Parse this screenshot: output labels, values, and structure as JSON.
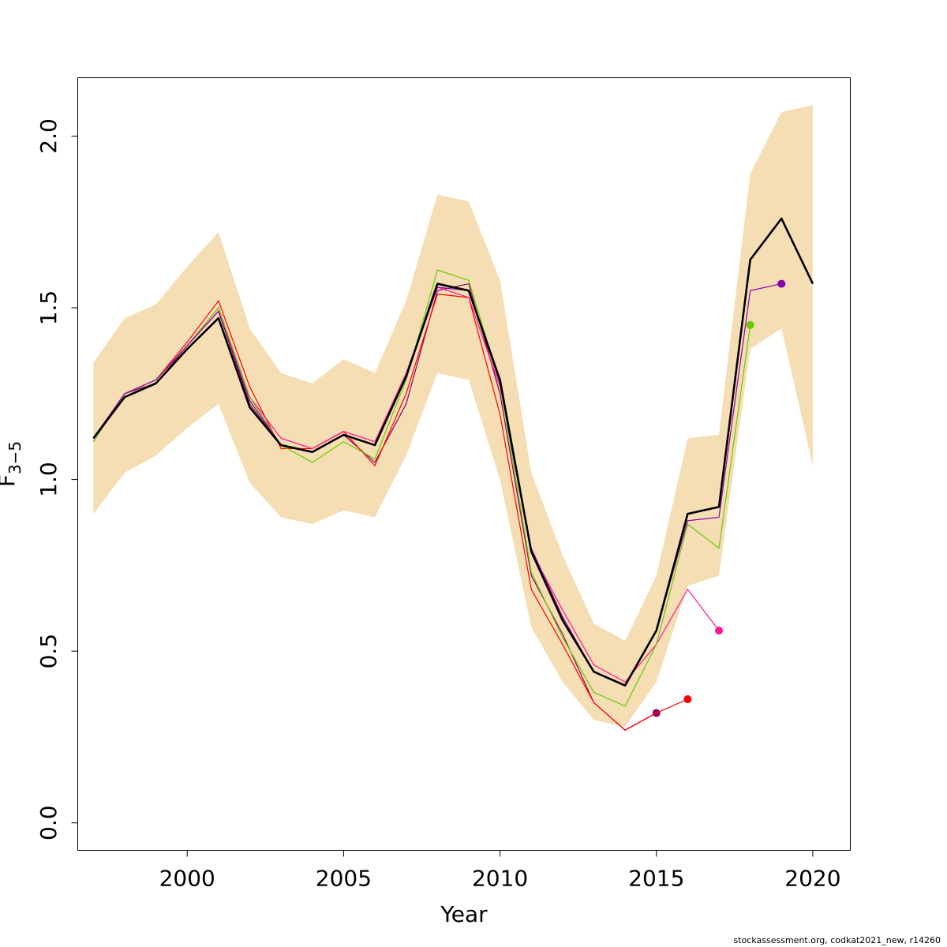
{
  "chart_data": {
    "type": "line",
    "xlabel": "Year",
    "ylabel": "F",
    "ylabel_sub": "3−5",
    "xlim": [
      1996.5,
      2021.2
    ],
    "ylim": [
      -0.08,
      2.17
    ],
    "xticks": [
      2000,
      2005,
      2010,
      2015,
      2020
    ],
    "yticks": [
      0.0,
      0.5,
      1.0,
      1.5,
      2.0
    ],
    "ytick_labels": [
      "0.0",
      "0.5",
      "1.0",
      "1.5",
      "2.0"
    ],
    "colors": {
      "band": "#f5deb3",
      "main": "#000000"
    },
    "confidence_band": {
      "x": [
        1997,
        1998,
        1999,
        2000,
        2001,
        2002,
        2003,
        2004,
        2005,
        2006,
        2007,
        2008,
        2009,
        2010,
        2011,
        2012,
        2013,
        2014,
        2015,
        2016,
        2017,
        2018,
        2019,
        2020
      ],
      "lower": [
        0.9,
        1.02,
        1.07,
        1.15,
        1.22,
        0.99,
        0.89,
        0.87,
        0.91,
        0.89,
        1.07,
        1.31,
        1.29,
        1.0,
        0.57,
        0.41,
        0.3,
        0.28,
        0.41,
        0.69,
        0.72,
        1.38,
        1.44,
        1.04
      ],
      "upper": [
        1.34,
        1.47,
        1.51,
        1.62,
        1.72,
        1.44,
        1.31,
        1.28,
        1.35,
        1.31,
        1.52,
        1.83,
        1.81,
        1.58,
        1.02,
        0.78,
        0.58,
        0.53,
        0.72,
        1.12,
        1.13,
        1.89,
        2.07,
        2.09
      ]
    },
    "main_series": {
      "x": [
        1997,
        1998,
        1999,
        2000,
        2001,
        2002,
        2003,
        2004,
        2005,
        2006,
        2007,
        2008,
        2009,
        2010,
        2011,
        2012,
        2013,
        2014,
        2015,
        2016,
        2017,
        2018,
        2019,
        2020
      ],
      "values": [
        1.12,
        1.24,
        1.28,
        1.38,
        1.47,
        1.21,
        1.1,
        1.08,
        1.13,
        1.1,
        1.3,
        1.57,
        1.55,
        1.29,
        0.79,
        0.59,
        0.44,
        0.4,
        0.56,
        0.9,
        0.92,
        1.64,
        1.76,
        1.57
      ]
    },
    "retro_series": [
      {
        "color": "#8b0066",
        "x": [
          1997,
          1998,
          1999,
          2000,
          2001,
          2002,
          2003,
          2004,
          2005,
          2006,
          2007,
          2008,
          2009,
          2010,
          2011,
          2012,
          2013,
          2014,
          2015
        ],
        "values": [
          1.11,
          1.25,
          1.28,
          1.39,
          1.49,
          1.22,
          1.1,
          1.08,
          1.13,
          1.05,
          1.22,
          1.55,
          1.57,
          1.25,
          0.72,
          0.55,
          0.35,
          0.27,
          0.32
        ]
      },
      {
        "color": "#ff0000",
        "x": [
          1997,
          1998,
          1999,
          2000,
          2001,
          2002,
          2003,
          2004,
          2005,
          2006,
          2007,
          2008,
          2009,
          2010,
          2011,
          2012,
          2013,
          2014,
          2015,
          2016
        ],
        "values": [
          1.12,
          1.25,
          1.29,
          1.4,
          1.52,
          1.27,
          1.09,
          1.09,
          1.14,
          1.04,
          1.25,
          1.54,
          1.53,
          1.19,
          0.68,
          0.52,
          0.35,
          0.27,
          0.32,
          0.36
        ]
      },
      {
        "color": "#ff1493",
        "x": [
          1997,
          1998,
          1999,
          2000,
          2001,
          2002,
          2003,
          2004,
          2005,
          2006,
          2007,
          2008,
          2009,
          2010,
          2011,
          2012,
          2013,
          2014,
          2015,
          2016,
          2017
        ],
        "values": [
          1.12,
          1.25,
          1.29,
          1.39,
          1.5,
          1.24,
          1.12,
          1.09,
          1.14,
          1.11,
          1.31,
          1.56,
          1.53,
          1.27,
          0.79,
          0.62,
          0.46,
          0.41,
          0.52,
          0.68,
          0.56
        ]
      },
      {
        "color": "#66cc00",
        "x": [
          1997,
          1998,
          1999,
          2000,
          2001,
          2002,
          2003,
          2004,
          2005,
          2006,
          2007,
          2008,
          2009,
          2010,
          2011,
          2012,
          2013,
          2014,
          2015,
          2016,
          2017,
          2018
        ],
        "values": [
          1.11,
          1.25,
          1.29,
          1.39,
          1.5,
          1.24,
          1.1,
          1.05,
          1.11,
          1.06,
          1.29,
          1.61,
          1.58,
          1.28,
          0.73,
          0.54,
          0.38,
          0.34,
          0.52,
          0.87,
          0.8,
          1.45
        ]
      },
      {
        "color": "#8b00b0",
        "x": [
          1997,
          1998,
          1999,
          2000,
          2001,
          2002,
          2003,
          2004,
          2005,
          2006,
          2007,
          2008,
          2009,
          2010,
          2011,
          2012,
          2013,
          2014,
          2015,
          2016,
          2017,
          2018,
          2019
        ],
        "values": [
          1.12,
          1.25,
          1.29,
          1.39,
          1.49,
          1.23,
          1.1,
          1.08,
          1.13,
          1.1,
          1.3,
          1.56,
          1.55,
          1.28,
          0.8,
          0.6,
          0.44,
          0.4,
          0.56,
          0.88,
          0.89,
          1.55,
          1.57
        ]
      }
    ]
  },
  "footer": {
    "credit": "stockassessment.org, codkat2021_new, r14260"
  }
}
